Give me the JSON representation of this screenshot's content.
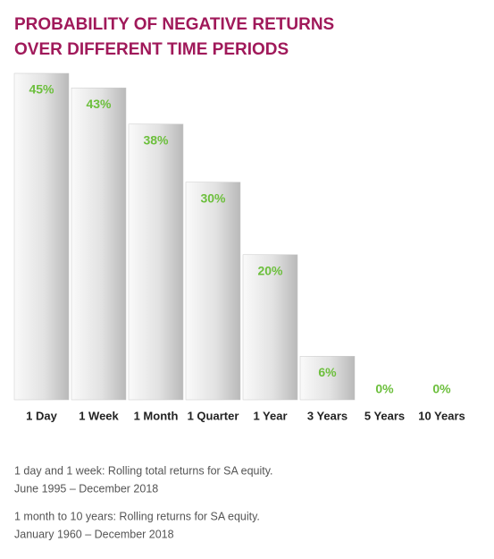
{
  "chart_data": {
    "type": "bar",
    "title_lines": [
      "PROBABILITY OF NEGATIVE RETURNS",
      "OVER DIFFERENT TIME PERIODS"
    ],
    "categories": [
      "1 Day",
      "1 Week",
      "1 Month",
      "1 Quarter",
      "1 Year",
      "3 Years",
      "5 Years",
      "10 Years"
    ],
    "values": [
      45,
      43,
      38,
      30,
      20,
      6,
      0,
      0
    ],
    "value_labels": [
      "45%",
      "43%",
      "38%",
      "30%",
      "20%",
      "6%",
      "0%",
      "0%"
    ],
    "color": "#c8c8c8",
    "label_color": "#6cbf3c"
  },
  "notes": [
    [
      "1 day and 1 week: Rolling total returns for SA equity.",
      "June 1995 – December 2018"
    ],
    [
      "1 month to 10 years: Rolling returns for SA equity.",
      "January 1960 – December 2018"
    ]
  ]
}
